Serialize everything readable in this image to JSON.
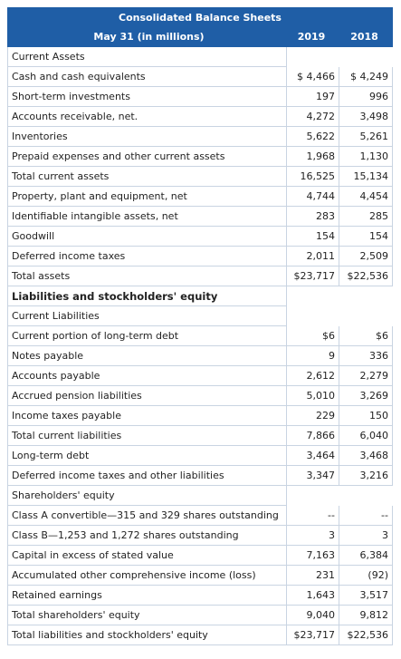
{
  "header": {
    "title": "Consolidated Balance Sheets",
    "subtitle": "May 31 (in millions)",
    "years": [
      "2019",
      "2018"
    ]
  },
  "table": {
    "rows": [
      [
        "Current Assets"
      ],
      [
        "Cash and cash equivalents",
        "$ 4,466",
        "$ 4,249"
      ],
      [
        "Short-term investments",
        "197",
        "996"
      ],
      [
        "Accounts receivable, net.",
        "4,272",
        "3,498"
      ],
      [
        "Inventories",
        "5,622",
        "5,261"
      ],
      [
        "Prepaid expenses and other current assets",
        "1,968",
        "1,130"
      ],
      [
        "Total current assets",
        "16,525",
        "15,134"
      ],
      [
        "Property, plant and equipment, net",
        "4,744",
        "4,454"
      ],
      [
        "Identifiable intangible assets, net",
        "283",
        "285"
      ],
      [
        "Goodwill",
        "154",
        "154"
      ],
      [
        "Deferred income taxes",
        "2,011",
        "2,509"
      ],
      [
        "Total assets",
        "$23,717",
        "$22,536"
      ],
      [
        "Liabilities and stockholders' equity"
      ],
      [
        "Current Liabilities"
      ],
      [
        "Current portion of long-term debt",
        "$6",
        "$6"
      ],
      [
        "Notes payable",
        "9",
        "336"
      ],
      [
        "Accounts payable",
        "2,612",
        "2,279"
      ],
      [
        "Accrued pension liabilities",
        "5,010",
        "3,269"
      ],
      [
        "Income taxes payable",
        "229",
        "150"
      ],
      [
        "Total current liabilities",
        "7,866",
        "6,040"
      ],
      [
        "Long-term debt",
        "3,464",
        "3,468"
      ],
      [
        "Deferred income taxes and other liabilities",
        "3,347",
        "3,216"
      ],
      [
        "Shareholders' equity"
      ],
      [
        "Class A convertible—315 and 329 shares outstanding",
        "--",
        "--"
      ],
      [
        "Class B—1,253 and 1,272 shares outstanding",
        "3",
        "3"
      ],
      [
        "Capital in excess of stated value",
        "7,163",
        "6,384"
      ],
      [
        "Accumulated other comprehensive income (loss)",
        "231",
        "(92)"
      ],
      [
        "Retained earnings",
        "1,643",
        "3,517"
      ],
      [
        "Total shareholders' equity",
        "9,040",
        "9,812"
      ],
      [
        "Total liabilities and stockholders' equity",
        "$23,717",
        "$22,536"
      ]
    ]
  }
}
